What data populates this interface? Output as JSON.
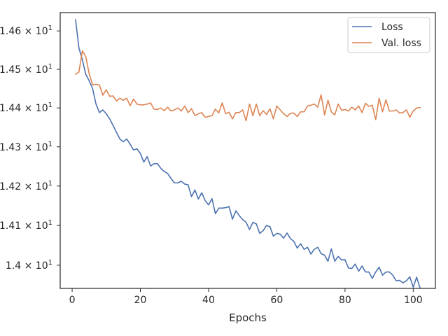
{
  "chart_data": {
    "type": "line",
    "xlabel": "Epochs",
    "ylabel": "",
    "title": "",
    "xlim": [
      -3.5,
      106.5
    ],
    "ylim": [
      13.942,
      14.648
    ],
    "y_scale": "log",
    "grid": false,
    "legend_position": "top-right",
    "x_ticks": [
      {
        "value": 0,
        "label": "0"
      },
      {
        "value": 20,
        "label": "20"
      },
      {
        "value": 40,
        "label": "40"
      },
      {
        "value": 60,
        "label": "60"
      },
      {
        "value": 80,
        "label": "80"
      },
      {
        "value": 100,
        "label": "100"
      }
    ],
    "y_ticks": [
      {
        "value": 14.0,
        "mantissa": "1.4",
        "label": "1.4 × 10¹"
      },
      {
        "value": 14.1,
        "mantissa": "1.41",
        "label": "1.41 × 10¹"
      },
      {
        "value": 14.2,
        "mantissa": "1.42",
        "label": "1.42 × 10¹"
      },
      {
        "value": 14.3,
        "mantissa": "1.43",
        "label": "1.43 × 10¹"
      },
      {
        "value": 14.4,
        "mantissa": "1.44",
        "label": "1.44 × 10¹"
      },
      {
        "value": 14.5,
        "mantissa": "1.45",
        "label": "1.45 × 10¹"
      },
      {
        "value": 14.6,
        "mantissa": "1.46",
        "label": "1.46 × 10¹"
      }
    ],
    "y_tick_base": "× 10",
    "y_tick_exponent": "1",
    "series": [
      {
        "name": "Loss",
        "color": "#4c72b0",
        "x": [
          1,
          2,
          3,
          4,
          5,
          6,
          7,
          8,
          9,
          10,
          11,
          12,
          13,
          14,
          15,
          16,
          17,
          18,
          19,
          20,
          21,
          22,
          23,
          24,
          25,
          26,
          27,
          28,
          29,
          30,
          31,
          32,
          33,
          34,
          35,
          36,
          37,
          38,
          39,
          40,
          41,
          42,
          43,
          44,
          45,
          46,
          47,
          48,
          49,
          50,
          51,
          52,
          53,
          54,
          55,
          56,
          57,
          58,
          59,
          60,
          61,
          62,
          63,
          64,
          65,
          66,
          67,
          68,
          69,
          70,
          71,
          72,
          73,
          74,
          75,
          76,
          77,
          78,
          79,
          80,
          81,
          82,
          83,
          84,
          85,
          86,
          87,
          88,
          89,
          90,
          91,
          92,
          93,
          94,
          95,
          96,
          97,
          98,
          99,
          100,
          101,
          102
        ],
        "values": [
          14.63,
          14.555,
          14.525,
          14.487,
          14.47,
          14.45,
          14.41,
          14.388,
          14.395,
          14.385,
          14.372,
          14.355,
          14.337,
          14.32,
          14.313,
          14.32,
          14.307,
          14.292,
          14.295,
          14.283,
          14.261,
          14.275,
          14.251,
          14.257,
          14.257,
          14.245,
          14.237,
          14.232,
          14.219,
          14.208,
          14.208,
          14.212,
          14.205,
          14.203,
          14.173,
          14.19,
          14.167,
          14.183,
          14.163,
          14.152,
          14.168,
          14.13,
          14.144,
          14.144,
          14.145,
          14.148,
          14.116,
          14.137,
          14.125,
          14.115,
          14.108,
          14.09,
          14.108,
          14.104,
          14.08,
          14.087,
          14.1,
          14.097,
          14.073,
          14.08,
          14.078,
          14.068,
          14.081,
          14.067,
          14.06,
          14.043,
          14.054,
          14.04,
          14.045,
          14.028,
          14.04,
          14.045,
          14.029,
          14.025,
          14.01,
          14.041,
          14.01,
          14.022,
          14.013,
          14.014,
          13.993,
          13.992,
          14.003,
          13.985,
          13.998,
          13.983,
          13.983,
          13.967,
          13.983,
          13.995,
          13.975,
          13.983,
          13.983,
          13.975,
          13.961,
          13.962,
          13.956,
          13.961,
          13.971,
          13.945,
          13.97,
          13.943
        ]
      },
      {
        "name": "Val. loss",
        "color": "#dd8452",
        "x": [
          1,
          2,
          3,
          4,
          5,
          6,
          7,
          8,
          9,
          10,
          11,
          12,
          13,
          14,
          15,
          16,
          17,
          18,
          19,
          20,
          21,
          22,
          23,
          24,
          25,
          26,
          27,
          28,
          29,
          30,
          31,
          32,
          33,
          34,
          35,
          36,
          37,
          38,
          39,
          40,
          41,
          42,
          43,
          44,
          45,
          46,
          47,
          48,
          49,
          50,
          51,
          52,
          53,
          54,
          55,
          56,
          57,
          58,
          59,
          60,
          61,
          62,
          63,
          64,
          65,
          66,
          67,
          68,
          69,
          70,
          71,
          72,
          73,
          74,
          75,
          76,
          77,
          78,
          79,
          80,
          81,
          82,
          83,
          84,
          85,
          86,
          87,
          88,
          89,
          90,
          91,
          92,
          93,
          94,
          95,
          96,
          97,
          98,
          99,
          100,
          101,
          102
        ],
        "values": [
          14.487,
          14.493,
          14.548,
          14.533,
          14.488,
          14.46,
          14.461,
          14.459,
          14.433,
          14.447,
          14.43,
          14.431,
          14.418,
          14.425,
          14.42,
          14.425,
          14.406,
          14.423,
          14.41,
          14.408,
          14.408,
          14.41,
          14.413,
          14.397,
          14.396,
          14.4,
          14.393,
          14.402,
          14.392,
          14.395,
          14.4,
          14.392,
          14.405,
          14.388,
          14.398,
          14.38,
          14.385,
          14.388,
          14.376,
          14.378,
          14.38,
          14.397,
          14.387,
          14.413,
          14.385,
          14.389,
          14.372,
          14.388,
          14.388,
          14.395,
          14.367,
          14.41,
          14.38,
          14.41,
          14.38,
          14.393,
          14.383,
          14.398,
          14.372,
          14.405,
          14.395,
          14.385,
          14.378,
          14.386,
          14.387,
          14.378,
          14.39,
          14.39,
          14.405,
          14.407,
          14.41,
          14.402,
          14.434,
          14.382,
          14.42,
          14.39,
          14.382,
          14.41,
          14.394,
          14.396,
          14.392,
          14.402,
          14.395,
          14.405,
          14.388,
          14.412,
          14.404,
          14.407,
          14.37,
          14.425,
          14.39,
          14.421,
          14.392,
          14.392,
          14.395,
          14.387,
          14.388,
          14.395,
          14.376,
          14.392,
          14.4,
          14.401
        ]
      }
    ]
  }
}
